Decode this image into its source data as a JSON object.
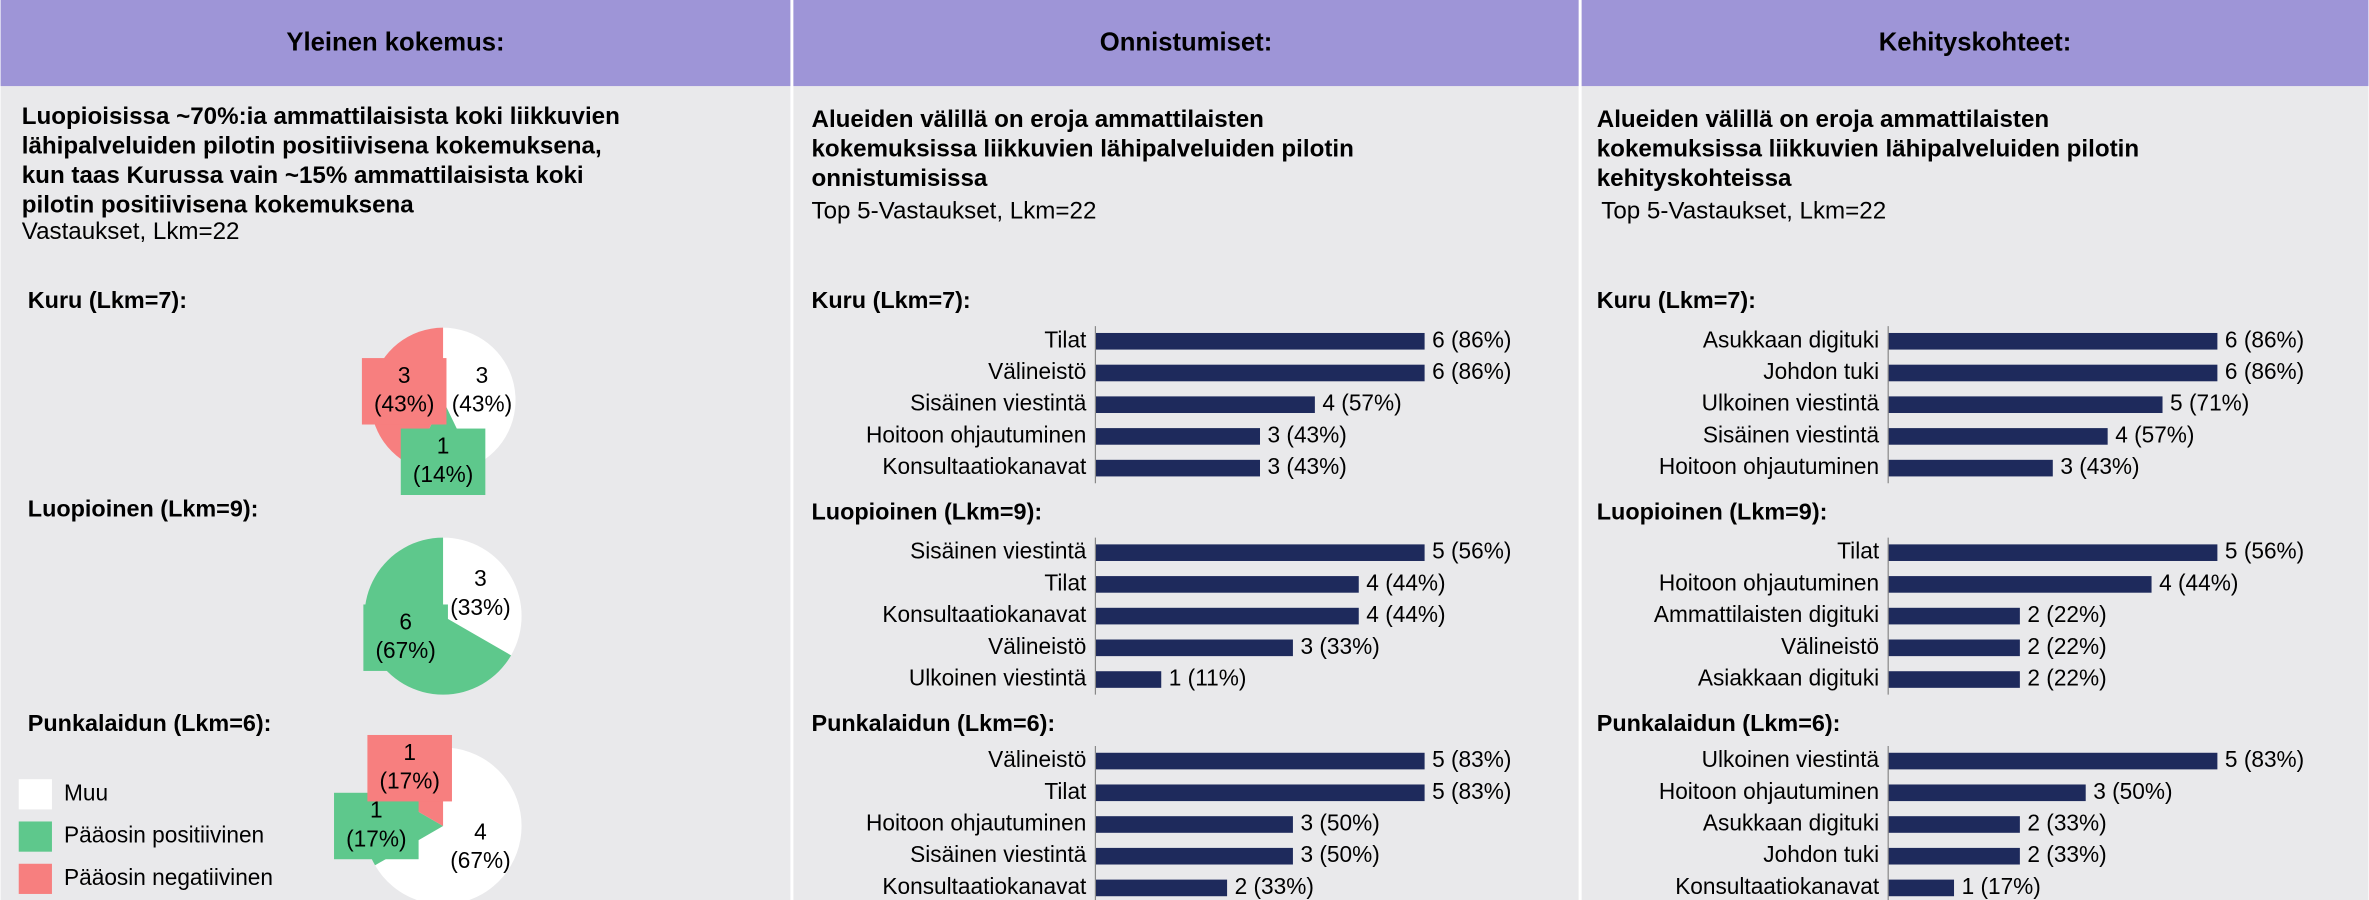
{
  "columns": [
    {
      "title": "Yleinen kokemus:",
      "description": [
        "Luopioisissa ~70%:ia ammattilaisista koki liikkuvien",
        "lähipalveluiden pilotin positiivisena kokemuksena,",
        "kun taas Kurussa vain ~15% ammattilaisista koki",
        "pilotin positiivisena kokemuksena"
      ],
      "subtitle": "Vastaukset, Lkm=22"
    },
    {
      "title": "Onnistumiset:",
      "description": [
        "Alueiden välillä on eroja ammattilaisten",
        "kokemuksissa liikkuvien lähipalveluiden pilotin",
        "onnistumisissa"
      ],
      "subtitle": "Top 5-Vastaukset, Lkm=22"
    },
    {
      "title": "Kehityskohteet:",
      "description": [
        "Alueiden välillä on eroja ammattilaisten",
        "kokemuksissa liikkuvien lähipalveluiden pilotin",
        "kehityskohteissa"
      ],
      "subtitle": "Top 5-Vastaukset, Lkm=22"
    }
  ],
  "legend": [
    {
      "name": "Muu",
      "color": "#ffffff"
    },
    {
      "name": "Pääosin positiivinen",
      "color": "#5ec88c"
    },
    {
      "name": "Pääosin negatiivinen",
      "color": "#f77f7f"
    }
  ],
  "chart_data": [
    {
      "type": "pie",
      "title": "Kuru (Lkm=7):",
      "values": [
        3,
        1,
        3
      ],
      "value_labels": [
        "3 (43%)",
        "1 (14%)",
        "3 (43%)"
      ]
    },
    {
      "type": "pie",
      "title": "Luopioinen (Lkm=9):",
      "values": [
        3,
        6,
        0
      ],
      "value_labels": [
        "3 (33%)",
        "6 (67%)",
        null
      ]
    },
    {
      "type": "pie",
      "title": "Punkalaidun (Lkm=6):",
      "values": [
        4,
        1,
        1
      ],
      "value_labels": [
        "4 (67%)",
        "1 (17%)",
        "1 (17%)"
      ]
    },
    {
      "type": "bar",
      "title": "Kuru (Lkm=7):",
      "color": "#1e2a5c",
      "xlim": [
        0,
        6
      ],
      "categories": [
        "Tilat",
        "Välineistö",
        "Sisäinen viestintä",
        "Hoitoon ohjautuminen",
        "Konsultaatiokanavat"
      ],
      "values": [
        6,
        6,
        4,
        3,
        3
      ],
      "value_labels": [
        "6 (86%)",
        "6 (86%)",
        "4 (57%)",
        "3 (43%)",
        "3 (43%)"
      ]
    },
    {
      "type": "bar",
      "title": "Luopioinen (Lkm=9):",
      "color": "#1e2a5c",
      "xlim": [
        0,
        5
      ],
      "categories": [
        "Sisäinen viestintä",
        "Tilat",
        "Konsultaatiokanavat",
        "Välineistö",
        "Ulkoinen viestintä"
      ],
      "values": [
        5,
        4,
        4,
        3,
        1
      ],
      "value_labels": [
        "5 (56%)",
        "4 (44%)",
        "4 (44%)",
        "3 (33%)",
        "1 (11%)"
      ]
    },
    {
      "type": "bar",
      "title": "Punkalaidun (Lkm=6):",
      "color": "#1e2a5c",
      "xlim": [
        0,
        5
      ],
      "categories": [
        "Välineistö",
        "Tilat",
        "Hoitoon ohjautuminen",
        "Sisäinen viestintä",
        "Konsultaatiokanavat"
      ],
      "values": [
        5,
        5,
        3,
        3,
        2
      ],
      "value_labels": [
        "5 (83%)",
        "5 (83%)",
        "3 (50%)",
        "3 (50%)",
        "2 (33%)"
      ]
    },
    {
      "type": "bar",
      "title": "Kuru (Lkm=7):",
      "color": "#1e2a5c",
      "xlim": [
        0,
        6
      ],
      "categories": [
        "Asukkaan digituki",
        "Johdon tuki",
        "Ulkoinen viestintä",
        "Sisäinen viestintä",
        "Hoitoon ohjautuminen"
      ],
      "values": [
        6,
        6,
        5,
        4,
        3
      ],
      "value_labels": [
        "6 (86%)",
        "6 (86%)",
        "5 (71%)",
        "4 (57%)",
        "3 (43%)"
      ]
    },
    {
      "type": "bar",
      "title": "Luopioinen (Lkm=9):",
      "color": "#1e2a5c",
      "xlim": [
        0,
        5
      ],
      "categories": [
        "Tilat",
        "Hoitoon ohjautuminen",
        "Ammattilaisten digituki",
        "Välineistö",
        "Asiakkaan digituki"
      ],
      "values": [
        5,
        4,
        2,
        2,
        2
      ],
      "value_labels": [
        "5 (56%)",
        "4 (44%)",
        "2 (22%)",
        "2 (22%)",
        "2 (22%)"
      ]
    },
    {
      "type": "bar",
      "title": "Punkalaidun (Lkm=6):",
      "color": "#1e2a5c",
      "xlim": [
        0,
        5
      ],
      "categories": [
        "Ulkoinen viestintä",
        "Hoitoon ohjautuminen",
        "Asukkaan digituki",
        "Johdon tuki",
        "Konsultaatiokanavat"
      ],
      "values": [
        5,
        3,
        2,
        2,
        1
      ],
      "value_labels": [
        "5 (83%)",
        "3 (50%)",
        "2 (33%)",
        "2 (33%)",
        "1 (17%)"
      ]
    }
  ]
}
